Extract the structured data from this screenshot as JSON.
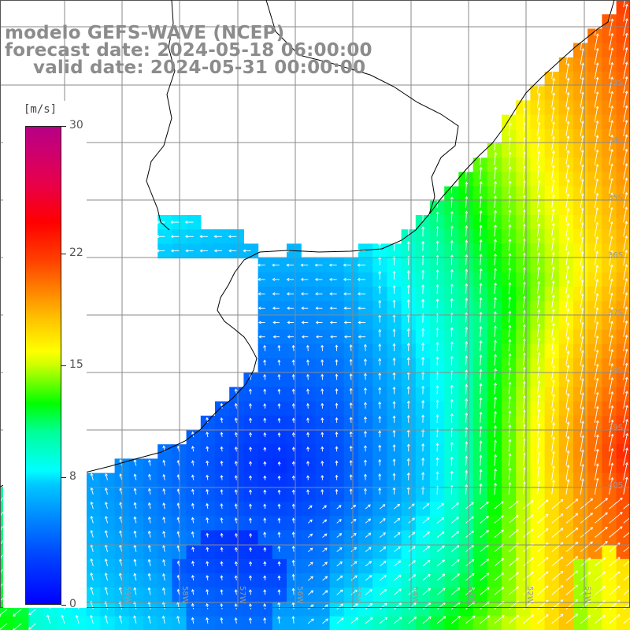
{
  "header": {
    "title": "modelo GEFS-WAVE (NCEP)",
    "forecast": "forecast date: 2024-05-18 06:00:00",
    "valid": "valid date: 2024-05-31 00:00:00"
  },
  "colorbar": {
    "unit": "[m/s]",
    "ticks": [
      {
        "label": "30",
        "value": 30
      },
      {
        "label": "22",
        "value": 22
      },
      {
        "label": "15",
        "value": 15
      },
      {
        "label": "8",
        "value": 8
      },
      {
        "label": "0",
        "value": 0
      }
    ],
    "min": 0,
    "max": 30
  },
  "lat_labels": [
    "33S",
    "34S",
    "35S",
    "36S",
    "37S",
    "38S",
    "39S",
    "40S"
  ],
  "lon_labels": [
    "59W",
    "58W",
    "57W",
    "56W",
    "55W",
    "54W",
    "53W",
    "52W",
    "51W"
  ],
  "colors": {
    "land": "#ffffff",
    "grid": "#8a8a8a",
    "coast": "#000000",
    "arrows": "#ffffff",
    "header_text": "#8c8c8c"
  }
}
